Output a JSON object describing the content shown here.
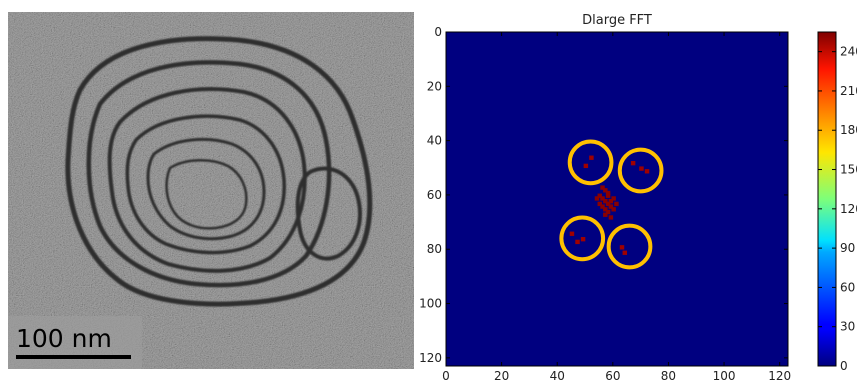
{
  "micrograph": {
    "scale_bar_label": "100 nm",
    "background_color": "#8c8c8c",
    "membrane_color": "#2f2f2f"
  },
  "chart_data": {
    "type": "heatmap",
    "title": "Dlarge FFT",
    "xlabel": "",
    "ylabel": "",
    "xlim": [
      0,
      123
    ],
    "ylim": [
      123,
      0
    ],
    "xticks": [
      0,
      20,
      40,
      60,
      80,
      100,
      120
    ],
    "yticks": [
      0,
      20,
      40,
      60,
      80,
      100,
      120
    ],
    "background_value": 0,
    "colormap": "jet",
    "colorbar": {
      "min": 0,
      "max": 255,
      "ticks": [
        0,
        30,
        60,
        90,
        120,
        150,
        180,
        210,
        240
      ]
    },
    "peaks": [
      {
        "x": 56,
        "y": 57,
        "value": 255
      },
      {
        "x": 57,
        "y": 58,
        "value": 255
      },
      {
        "x": 58,
        "y": 59,
        "value": 255
      },
      {
        "x": 55,
        "y": 60,
        "value": 255
      },
      {
        "x": 58,
        "y": 60,
        "value": 255
      },
      {
        "x": 54,
        "y": 61,
        "value": 255
      },
      {
        "x": 56,
        "y": 61,
        "value": 255
      },
      {
        "x": 60,
        "y": 61,
        "value": 255
      },
      {
        "x": 57,
        "y": 62,
        "value": 255
      },
      {
        "x": 59,
        "y": 62,
        "value": 255
      },
      {
        "x": 55,
        "y": 63,
        "value": 255
      },
      {
        "x": 58,
        "y": 63,
        "value": 255
      },
      {
        "x": 61,
        "y": 63,
        "value": 255
      },
      {
        "x": 56,
        "y": 64,
        "value": 255
      },
      {
        "x": 59,
        "y": 64,
        "value": 255
      },
      {
        "x": 57,
        "y": 65,
        "value": 255
      },
      {
        "x": 60,
        "y": 65,
        "value": 255
      },
      {
        "x": 58,
        "y": 66,
        "value": 255
      },
      {
        "x": 57,
        "y": 67,
        "value": 255
      },
      {
        "x": 59,
        "y": 68,
        "value": 255
      },
      {
        "x": 52,
        "y": 46,
        "value": 240
      },
      {
        "x": 50,
        "y": 49,
        "value": 240
      },
      {
        "x": 67,
        "y": 48,
        "value": 240
      },
      {
        "x": 70,
        "y": 50,
        "value": 240
      },
      {
        "x": 72,
        "y": 51,
        "value": 240
      },
      {
        "x": 45,
        "y": 74,
        "value": 240
      },
      {
        "x": 47,
        "y": 77,
        "value": 240
      },
      {
        "x": 49,
        "y": 76,
        "value": 240
      },
      {
        "x": 63,
        "y": 79,
        "value": 240
      },
      {
        "x": 64,
        "y": 81,
        "value": 240
      }
    ],
    "annotations": [
      {
        "shape": "circle",
        "cx": 52,
        "cy": 48,
        "r": 7.5,
        "color": "#ffc000"
      },
      {
        "shape": "circle",
        "cx": 70,
        "cy": 51,
        "r": 7.5,
        "color": "#ffc000"
      },
      {
        "shape": "circle",
        "cx": 49,
        "cy": 76,
        "r": 7.5,
        "color": "#ffc000"
      },
      {
        "shape": "circle",
        "cx": 66,
        "cy": 79,
        "r": 7.5,
        "color": "#ffc000"
      }
    ],
    "background_color": "#000080"
  }
}
